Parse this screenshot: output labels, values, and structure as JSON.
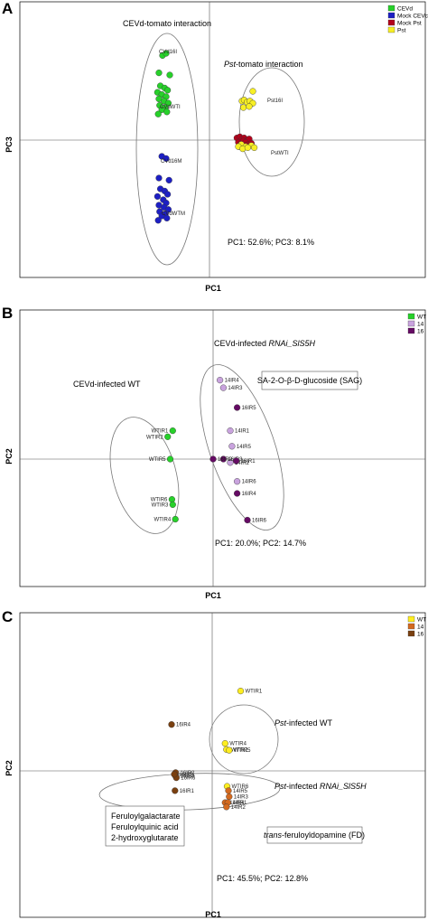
{
  "chart_data": [
    {
      "panel": "A",
      "type": "scatter",
      "xlabel": "PC1",
      "ylabel": "PC3",
      "variance_note": "PC1: 52.6%; PC3: 8.1%",
      "legend": [
        {
          "name": "CEVd",
          "color": "#27d12a"
        },
        {
          "name": "Mock CEVc",
          "color": "#1d1fc4"
        },
        {
          "name": "Mock Pst",
          "color": "#b3001b"
        },
        {
          "name": "Pst",
          "color": "#f7ef25"
        }
      ],
      "group_labels": [
        {
          "text": "CEVd-tomato interaction"
        },
        {
          "text": "Pst-tomato interaction",
          "italic_prefix": "Pst"
        }
      ],
      "point_labels": [
        "CVd16I",
        "CVdWTI",
        "CVd16M",
        "CVdWTM",
        "Pst16I",
        "PstWTI"
      ],
      "series": [
        {
          "name": "CEVd",
          "color": "#27d12a",
          "x": [
            -0.65,
            -0.6,
            -0.7,
            -0.55,
            -0.68,
            -0.62,
            -0.58,
            -0.72,
            -0.66,
            -0.6,
            -0.7,
            -0.63,
            -0.57,
            -0.69,
            -0.61,
            -0.66,
            -0.59,
            -0.71
          ],
          "y": [
            0.78,
            0.8,
            0.62,
            0.6,
            0.5,
            0.48,
            0.46,
            0.44,
            0.42,
            0.4,
            0.38,
            0.36,
            0.34,
            0.32,
            0.3,
            0.28,
            0.26,
            0.24
          ]
        },
        {
          "name": "Mock CEVc",
          "color": "#1d1fc4",
          "x": [
            -0.66,
            -0.6,
            -0.7,
            -0.56,
            -0.68,
            -0.62,
            -0.58,
            -0.72,
            -0.64,
            -0.6,
            -0.7,
            -0.63,
            -0.57,
            -0.69,
            -0.61,
            -0.66,
            -0.59,
            -0.71
          ],
          "y": [
            -0.15,
            -0.17,
            -0.35,
            -0.37,
            -0.45,
            -0.47,
            -0.5,
            -0.52,
            -0.55,
            -0.58,
            -0.6,
            -0.62,
            -0.64,
            -0.66,
            -0.68,
            -0.7,
            -0.72,
            -0.74
          ]
        },
        {
          "name": "Mock Pst",
          "color": "#b3001b",
          "x": [
            0.38,
            0.42,
            0.45,
            0.48,
            0.52,
            0.55,
            0.4,
            0.44,
            0.47,
            0.5,
            0.54,
            0.58,
            0.41,
            0.46,
            0.5
          ],
          "y": [
            0.02,
            0.03,
            0.01,
            0.02,
            0.0,
            0.01,
            -0.02,
            -0.03,
            -0.01,
            -0.02,
            -0.04,
            -0.03,
            -0.06,
            -0.07,
            -0.05
          ]
        },
        {
          "name": "Pst",
          "color": "#f7ef25",
          "x": [
            0.6,
            0.45,
            0.48,
            0.52,
            0.56,
            0.6,
            0.47,
            0.55,
            0.44,
            0.5,
            0.58,
            0.62,
            0.4,
            0.46,
            0.53
          ],
          "y": [
            0.45,
            0.36,
            0.37,
            0.35,
            0.36,
            0.34,
            0.3,
            0.31,
            -0.04,
            -0.06,
            -0.05,
            -0.07,
            -0.06,
            -0.08,
            -0.07
          ]
        }
      ]
    },
    {
      "panel": "B",
      "type": "scatter",
      "xlabel": "PC1",
      "ylabel": "PC2",
      "variance_note": "PC1: 20.0%; PC2: 14.7%",
      "legend": [
        {
          "name": "WT",
          "color": "#27d12a"
        },
        {
          "name": "14",
          "color": "#c9a3de"
        },
        {
          "name": "16",
          "color": "#650b64"
        }
      ],
      "group_labels": [
        {
          "text": "CEVd-infected WT"
        },
        {
          "text": "CEVd-infected ",
          "italic_suffix": "RNAi_SlS5H"
        }
      ],
      "box_label": "SA-2-O-β-D-glucoside (SAG)",
      "series": [
        {
          "name": "WT",
          "color": "#27d12a",
          "labels": [
            "WTIR1",
            "WTIR2",
            "WTIR5",
            "WTIR6",
            "WTIR3",
            "WTIR4"
          ],
          "x": [
            -0.47,
            -0.53,
            -0.5,
            -0.48,
            -0.47,
            -0.44
          ],
          "y": [
            0.33,
            0.26,
            0.0,
            -0.47,
            -0.53,
            -0.7
          ]
        },
        {
          "name": "14",
          "color": "#c9a3de",
          "labels": [
            "14IR4",
            "14IR3",
            "14IR1",
            "14IR5",
            "14IR2",
            "14IR6"
          ],
          "x": [
            0.08,
            0.12,
            0.2,
            0.22,
            0.2,
            0.28
          ],
          "y": [
            0.92,
            0.83,
            0.33,
            0.15,
            -0.04,
            -0.26
          ]
        },
        {
          "name": "16",
          "color": "#650b64",
          "labels": [
            "16IR5",
            "16IR3",
            "16IR1",
            "16IR2",
            "16IR4",
            "16IR6"
          ],
          "x": [
            0.28,
            0.12,
            0.27,
            0.0,
            0.28,
            0.4
          ],
          "y": [
            0.6,
            0.0,
            -0.02,
            0.0,
            -0.4,
            -0.71
          ]
        }
      ]
    },
    {
      "panel": "C",
      "type": "scatter",
      "xlabel": "PC1",
      "ylabel": "PC2",
      "variance_note": "PC1: 45.5%; PC2: 12.8%",
      "legend": [
        {
          "name": "WT",
          "color": "#ffee20"
        },
        {
          "name": "14",
          "color": "#d46a1f"
        },
        {
          "name": "16",
          "color": "#7a4010"
        }
      ],
      "group_labels": [
        {
          "text": "Pst-infected WT",
          "italic_prefix": "Pst"
        },
        {
          "text": "Pst-infected RNAi_SlS5H",
          "italic_prefix": "Pst",
          "italic_suffix": "RNAi_SlS5H"
        }
      ],
      "box_labels": [
        [
          "Feruloylgalactarate",
          "Feruloylquinic acid",
          "2-hydroxyglutarate"
        ],
        [
          "trans-feruloyldopamine (FD)"
        ]
      ],
      "series": [
        {
          "name": "WT",
          "color": "#ffee20",
          "labels": [
            "WTIR1",
            "WTIR4",
            "WTIR2",
            "WTIR5",
            "WTIR6"
          ],
          "x": [
            0.42,
            0.19,
            0.21,
            0.25,
            0.22
          ],
          "y": [
            0.93,
            0.32,
            0.25,
            0.24,
            -0.18
          ]
        },
        {
          "name": "14",
          "color": "#d46a1f",
          "labels": [
            "14IR5",
            "14IR3",
            "14IR4",
            "14IR1",
            "14IR2"
          ],
          "x": [
            0.24,
            0.25,
            0.19,
            0.23,
            0.21
          ],
          "y": [
            -0.23,
            -0.3,
            -0.37,
            -0.37,
            -0.42
          ]
        },
        {
          "name": "16",
          "color": "#7a4010",
          "labels": [
            "16IR4",
            "16IR2",
            "16IR3",
            "16IR6",
            "16IR1",
            "16IR5"
          ],
          "x": [
            -0.6,
            -0.54,
            -0.54,
            -0.53,
            -0.55,
            -0.56
          ],
          "y": [
            0.54,
            -0.02,
            -0.06,
            -0.08,
            -0.23,
            -0.04
          ]
        }
      ]
    }
  ],
  "panels": {
    "A": {
      "letter": "A",
      "axis_x": "PC1",
      "axis_y": "PC3",
      "note": "PC1: 52.6%; PC3: 8.1%",
      "group1": "CEVd-tomato interaction",
      "group2_pre": "Pst",
      "group2_post": "-tomato interaction",
      "leg": [
        "CEVd",
        "Mock CEVc",
        "Mock Pst",
        "Pst"
      ]
    },
    "B": {
      "letter": "B",
      "axis_x": "PC1",
      "axis_y": "PC2",
      "note": "PC1: 20.0%; PC2: 14.7%",
      "group1": "CEVd-infected WT",
      "group2_pre": "CEVd-infected ",
      "group2_it": "RNAi_SlS5H",
      "box": "SA-2-O-β-D-glucoside (SAG)",
      "leg": [
        "WT",
        "14",
        "16"
      ]
    },
    "C": {
      "letter": "C",
      "axis_x": "PC1",
      "axis_y": "PC2",
      "note": "PC1: 45.5%; PC2: 12.8%",
      "group1_it": "Pst",
      "group1_post": "-infected WT",
      "group2_it": "Pst",
      "group2_mid": "-infected ",
      "group2_it2": "RNAi_SlS5H",
      "box1": [
        "Feruloylgalactarate",
        "Feruloylquinic acid",
        "2-hydroxyglutarate"
      ],
      "box2_it": "trans",
      "box2_post": "-feruloyldopamine (FD)",
      "leg": [
        "WT",
        "14",
        "16"
      ]
    }
  }
}
